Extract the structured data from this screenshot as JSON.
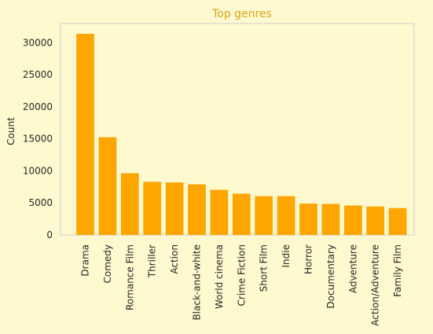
{
  "chart_data": {
    "type": "bar",
    "title": "Top genres",
    "xlabel": "",
    "ylabel": "Count",
    "categories": [
      "Drama",
      "Comedy",
      "Romance Film",
      "Thriller",
      "Action",
      "Black-and-white",
      "World cinema",
      "Crime Fiction",
      "Short Film",
      "Indie",
      "Horror",
      "Documentary",
      "Adventure",
      "Action/Adventure",
      "Family Film"
    ],
    "values": [
      31400,
      15250,
      9650,
      8300,
      8200,
      7900,
      7050,
      6450,
      6050,
      6050,
      4900,
      4850,
      4600,
      4450,
      4200
    ],
    "yticks": [
      0,
      5000,
      10000,
      15000,
      20000,
      25000,
      30000
    ],
    "ylim": [
      0,
      33000
    ],
    "grid": false,
    "legend": "none",
    "colors": {
      "bar": "#ffa500",
      "title": "#daa520",
      "background": "#fff9cf",
      "axes_edge": "#cccccc",
      "text": "#262626"
    }
  }
}
